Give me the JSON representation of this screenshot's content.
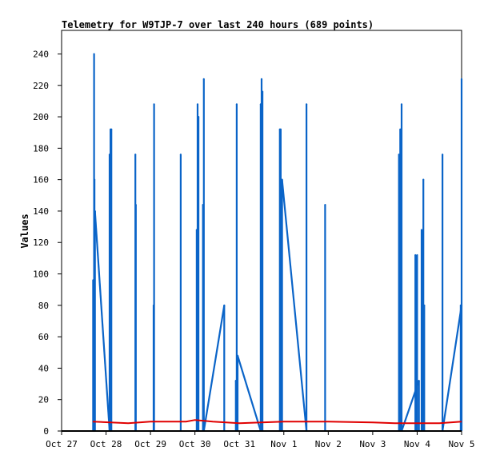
{
  "chart_data": {
    "type": "line",
    "title": "Telemetry for W9TJP-7 over last 240 hours (689 points)",
    "ylabel": "Values",
    "xlabel": "",
    "x_tick_labels": [
      "Oct 27",
      "Oct 28",
      "Oct 29",
      "Oct 30",
      "Oct 31",
      "Nov 1",
      "Nov 2",
      "Nov 3",
      "Nov 4",
      "Nov 5"
    ],
    "y_ticks": [
      0,
      20,
      40,
      60,
      80,
      100,
      120,
      140,
      160,
      180,
      200,
      220,
      240
    ],
    "xlim_days": [
      0,
      9
    ],
    "ylim": [
      0,
      255
    ],
    "grid": false,
    "legend": "none",
    "series": [
      {
        "color": "#0a64c8",
        "spikes": [
          [
            0.71,
            96
          ],
          [
            0.73,
            240
          ],
          [
            0.735,
            0
          ],
          [
            0.74,
            160
          ],
          [
            0.75,
            140
          ],
          [
            1.08,
            176
          ],
          [
            1.1,
            192
          ],
          [
            1.11,
            0
          ],
          [
            1.12,
            192
          ],
          [
            1.66,
            176
          ],
          [
            1.67,
            144
          ],
          [
            2.07,
            80
          ],
          [
            2.08,
            208
          ],
          [
            2.68,
            176
          ],
          [
            3.04,
            128
          ],
          [
            3.06,
            208
          ],
          [
            3.08,
            200
          ],
          [
            3.18,
            144
          ],
          [
            3.2,
            224
          ],
          [
            3.66,
            80
          ],
          [
            3.92,
            32
          ],
          [
            3.94,
            208
          ],
          [
            3.96,
            48
          ],
          [
            4.48,
            208
          ],
          [
            4.5,
            224
          ],
          [
            4.52,
            216
          ],
          [
            4.91,
            192
          ],
          [
            4.93,
            192
          ],
          [
            4.96,
            160
          ],
          [
            5.51,
            208
          ],
          [
            5.93,
            144
          ],
          [
            7.59,
            176
          ],
          [
            7.62,
            192
          ],
          [
            7.65,
            208
          ],
          [
            7.96,
            112
          ],
          [
            8.0,
            112
          ],
          [
            8.04,
            32
          ],
          [
            8.1,
            128
          ],
          [
            8.14,
            160
          ],
          [
            8.16,
            80
          ],
          [
            8.57,
            176
          ],
          [
            8.98,
            80
          ],
          [
            9.0,
            224
          ]
        ]
      },
      {
        "color": "#e00000",
        "points": [
          [
            0.7,
            6
          ],
          [
            1.5,
            5
          ],
          [
            2.0,
            6
          ],
          [
            2.8,
            6
          ],
          [
            3.0,
            7
          ],
          [
            3.4,
            6
          ],
          [
            4.0,
            5
          ],
          [
            5.0,
            6
          ],
          [
            6.0,
            6
          ],
          [
            7.0,
            5.5
          ],
          [
            7.5,
            5
          ],
          [
            8.5,
            5
          ],
          [
            9.0,
            6
          ]
        ]
      },
      {
        "color": "#000000",
        "points": [
          [
            0,
            0
          ],
          [
            9,
            0
          ]
        ]
      }
    ]
  }
}
